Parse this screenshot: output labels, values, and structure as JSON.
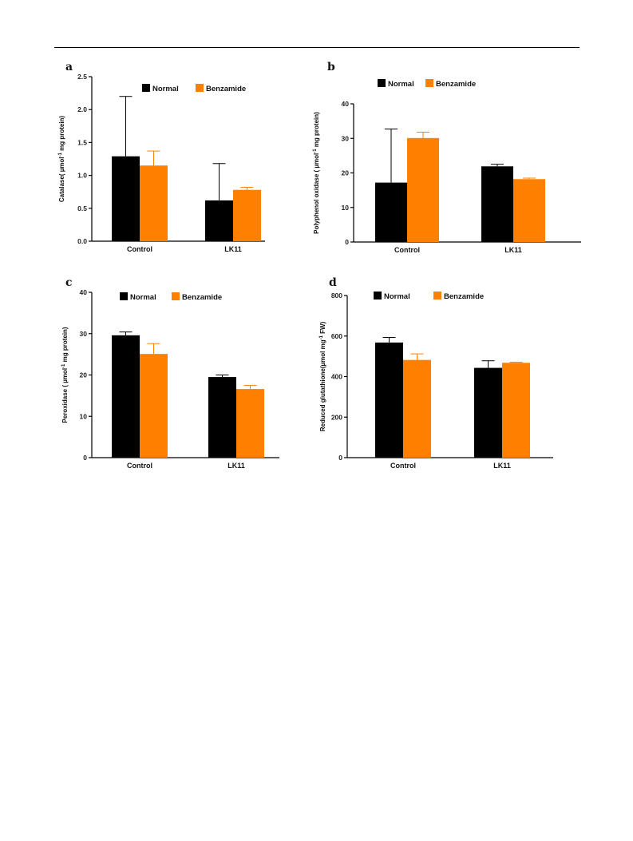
{
  "colors": {
    "normal": "#000000",
    "benzamide": "#ff8000"
  },
  "chart_data": [
    {
      "panel": "a",
      "type": "bar",
      "ylabel": "Catalase( µmol<sup>-1</sup> mg protein)",
      "ylabel_plain": "Catalase( µmol-1 mg protein)",
      "categories": [
        "Control",
        "LK11"
      ],
      "ylim": [
        0,
        2.5
      ],
      "yticks": [
        "0.0",
        "0.5",
        "1.0",
        "1.5",
        "2.0",
        "2.5"
      ],
      "legend": [
        "Normal",
        "Benzamide"
      ],
      "series": [
        {
          "name": "Normal",
          "values": [
            1.29,
            0.62
          ],
          "errors": [
            0.91,
            0.56
          ]
        },
        {
          "name": "Benzamide",
          "values": [
            1.15,
            0.78
          ],
          "errors": [
            0.22,
            0.04
          ]
        }
      ]
    },
    {
      "panel": "b",
      "type": "bar",
      "ylabel_plain": "Polyphenol oxidase ( µmol-1 mg protein)",
      "categories": [
        "Control",
        "LK11"
      ],
      "ylim": [
        0,
        40
      ],
      "yticks": [
        "0",
        "10",
        "20",
        "30",
        "40"
      ],
      "legend": [
        "Normal",
        "Benzamide"
      ],
      "series": [
        {
          "name": "Normal",
          "values": [
            17.2,
            21.9
          ],
          "errors": [
            15.5,
            0.6
          ]
        },
        {
          "name": "Benzamide",
          "values": [
            30.1,
            18.2
          ],
          "errors": [
            1.7,
            0.3
          ]
        }
      ]
    },
    {
      "panel": "c",
      "type": "bar",
      "ylabel_plain": "Peroxidase ( µmol-1 mg protein)",
      "categories": [
        "Control",
        "LK11"
      ],
      "ylim": [
        0,
        40
      ],
      "yticks": [
        "0",
        "10",
        "20",
        "30",
        "40"
      ],
      "legend": [
        "Normal",
        "Benzamide"
      ],
      "series": [
        {
          "name": "Normal",
          "values": [
            29.6,
            19.5
          ],
          "errors": [
            0.8,
            0.5
          ]
        },
        {
          "name": "Benzamide",
          "values": [
            25.1,
            16.6
          ],
          "errors": [
            2.5,
            0.9
          ]
        }
      ]
    },
    {
      "panel": "d",
      "type": "bar",
      "ylabel_plain": "Reduced glutathione(µmol mg-1 FW)",
      "categories": [
        "Control",
        "LK11"
      ],
      "ylim": [
        0,
        800
      ],
      "yticks": [
        "0",
        "200",
        "400",
        "600",
        "800"
      ],
      "legend": [
        "Normal",
        "Benzamide"
      ],
      "series": [
        {
          "name": "Normal",
          "values": [
            568,
            443
          ],
          "errors": [
            25,
            35
          ]
        },
        {
          "name": "Benzamide",
          "values": [
            482,
            468
          ],
          "errors": [
            30,
            3
          ]
        }
      ]
    }
  ]
}
